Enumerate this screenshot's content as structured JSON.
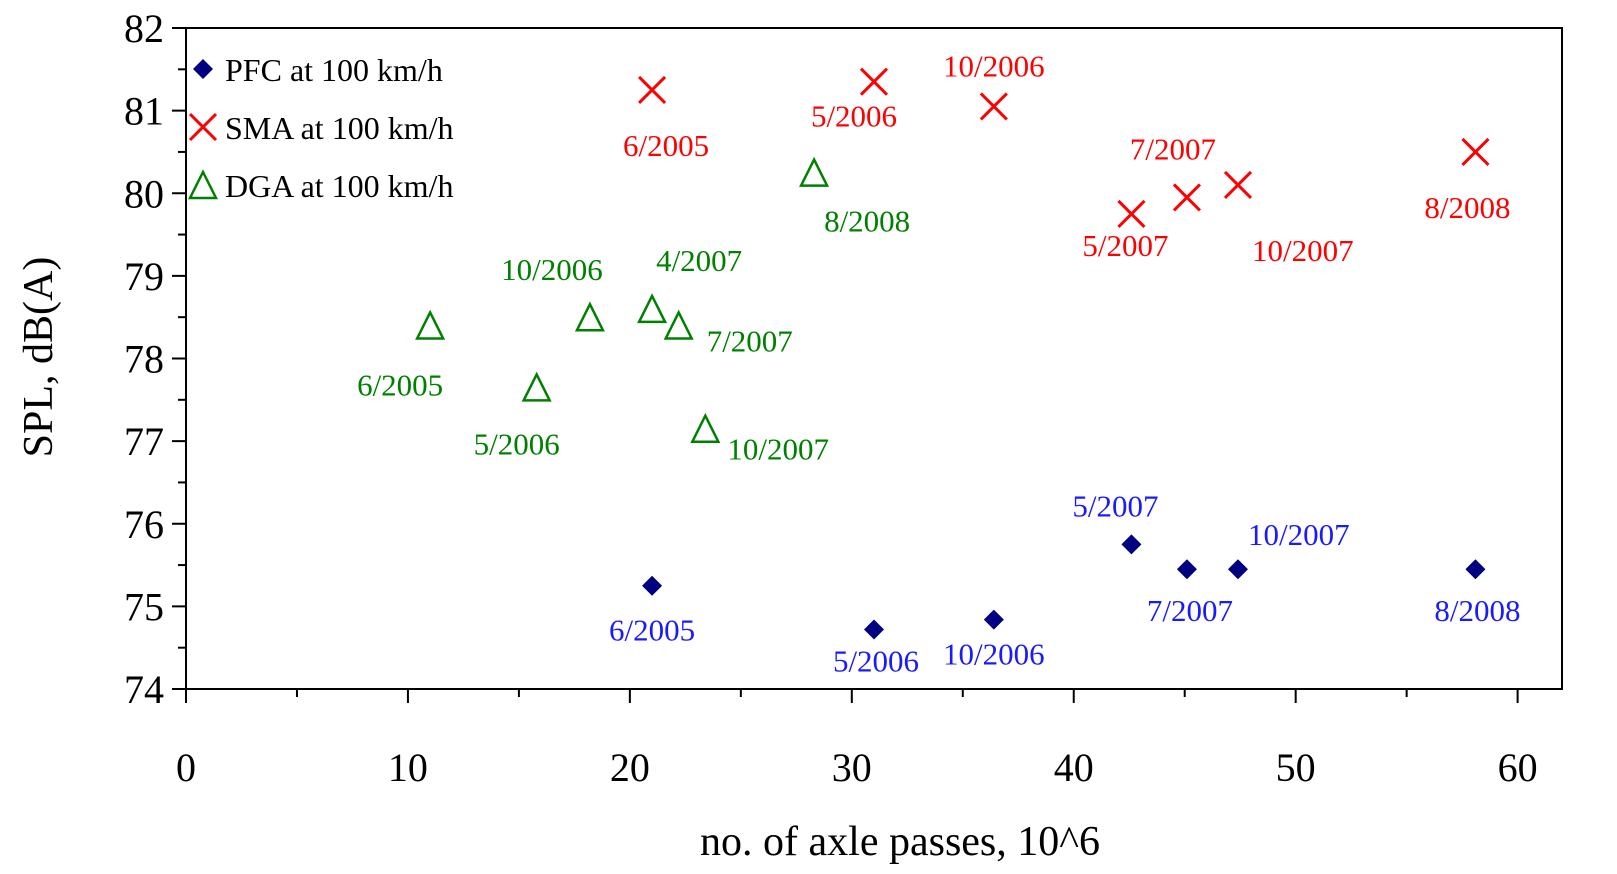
{
  "chart_data": {
    "type": "scatter",
    "xlabel": "no. of axle passes, 10^6",
    "ylabel": "SPL, dB(A)",
    "xlim": [
      0,
      62
    ],
    "ylim": [
      74,
      82
    ],
    "x_ticks": [
      0,
      10,
      20,
      30,
      40,
      50,
      60
    ],
    "y_ticks": [
      74,
      75,
      76,
      77,
      78,
      79,
      80,
      81,
      82
    ],
    "x_tick_labels": [
      "0",
      "10",
      "20",
      "30",
      "40",
      "50",
      "60"
    ],
    "y_tick_labels": [
      "74",
      "75",
      "76",
      "77",
      "78",
      "79",
      "80",
      "81",
      "82"
    ],
    "grid": false,
    "legend_position": "top-left",
    "series": [
      {
        "name": "PFC at 100 km/h",
        "marker": "diamond",
        "color": "#000080",
        "label_color": "#1a1aff",
        "points": [
          {
            "x": 21.0,
            "y": 75.25,
            "label": "6/2005"
          },
          {
            "x": 31.0,
            "y": 74.72,
            "label": "5/2006"
          },
          {
            "x": 36.4,
            "y": 74.84,
            "label": "10/2006"
          },
          {
            "x": 42.6,
            "y": 75.75,
            "label": "5/2007"
          },
          {
            "x": 45.1,
            "y": 75.45,
            "label": "7/2007"
          },
          {
            "x": 47.4,
            "y": 75.45,
            "label": "10/2007"
          },
          {
            "x": 58.1,
            "y": 75.45,
            "label": "8/2008"
          }
        ]
      },
      {
        "name": "SMA at 100 km/h",
        "marker": "x",
        "color": "#ff0000",
        "label_color": "#ff0000",
        "points": [
          {
            "x": 21.0,
            "y": 81.25,
            "label": "6/2005"
          },
          {
            "x": 31.0,
            "y": 81.35,
            "label": "5/2006"
          },
          {
            "x": 36.4,
            "y": 81.05,
            "label": "10/2006"
          },
          {
            "x": 42.6,
            "y": 79.75,
            "label": "5/2007"
          },
          {
            "x": 45.1,
            "y": 79.95,
            "label": "7/2007"
          },
          {
            "x": 47.4,
            "y": 80.1,
            "label": "10/2007"
          },
          {
            "x": 58.1,
            "y": 80.5,
            "label": "8/2008"
          }
        ]
      },
      {
        "name": "DGA at 100 km/h",
        "marker": "triangle-open",
        "color": "#008000",
        "label_color": "#008000",
        "points": [
          {
            "x": 11.0,
            "y": 78.4,
            "label": "6/2005"
          },
          {
            "x": 15.8,
            "y": 77.65,
            "label": "5/2006"
          },
          {
            "x": 18.2,
            "y": 78.5,
            "label": "10/2006"
          },
          {
            "x": 21.0,
            "y": 78.6,
            "label": "4/2007"
          },
          {
            "x": 22.2,
            "y": 78.4,
            "label": "7/2007"
          },
          {
            "x": 23.4,
            "y": 77.15,
            "label": "10/2007"
          },
          {
            "x": 28.3,
            "y": 80.25,
            "label": "8/2008"
          }
        ]
      }
    ]
  }
}
